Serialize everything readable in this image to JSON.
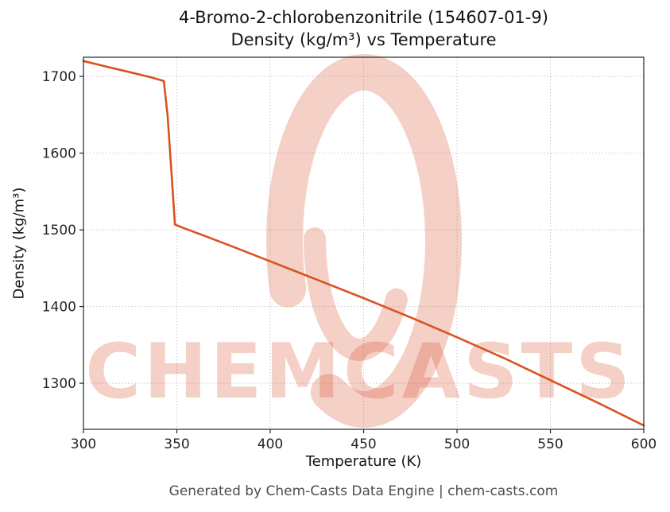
{
  "page": {
    "background": "#ffffff"
  },
  "chart_data": {
    "type": "line",
    "title_lines": [
      "4-Bromo-2-chlorobenzonitrile (154607-01-9)",
      "Density (kg/m³) vs Temperature"
    ],
    "xlabel": "Temperature (K)",
    "ylabel": "Density (kg/m³)",
    "xlim": [
      300,
      600
    ],
    "ylim": [
      1240,
      1725
    ],
    "x_ticks": [
      300,
      350,
      400,
      450,
      500,
      550,
      600
    ],
    "y_ticks": [
      1300,
      1400,
      1500,
      1600,
      1700
    ],
    "grid": true,
    "grid_style": "dotted",
    "grid_color": "#c9c9c9",
    "axis_color": "#262626",
    "legend": "none",
    "series": [
      {
        "name": "Density",
        "color": "#d9531e",
        "points": [
          [
            300,
            1720
          ],
          [
            312,
            1713
          ],
          [
            324,
            1706
          ],
          [
            336,
            1699
          ],
          [
            343,
            1694
          ],
          [
            345,
            1650
          ],
          [
            347,
            1580
          ],
          [
            349,
            1507
          ],
          [
            354,
            1502
          ],
          [
            365,
            1492
          ],
          [
            380,
            1478
          ],
          [
            400,
            1459
          ],
          [
            425,
            1435
          ],
          [
            450,
            1411
          ],
          [
            475,
            1386
          ],
          [
            500,
            1360
          ],
          [
            525,
            1333
          ],
          [
            550,
            1304
          ],
          [
            575,
            1275
          ],
          [
            600,
            1245
          ]
        ]
      }
    ]
  },
  "watermark": {
    "text": "CHEMCASTS",
    "logo": "swirl-c-logo",
    "color": "rgba(217, 80, 48, 0.27)"
  },
  "footer": {
    "text": "Generated by Chem-Casts Data Engine | chem-casts.com"
  }
}
